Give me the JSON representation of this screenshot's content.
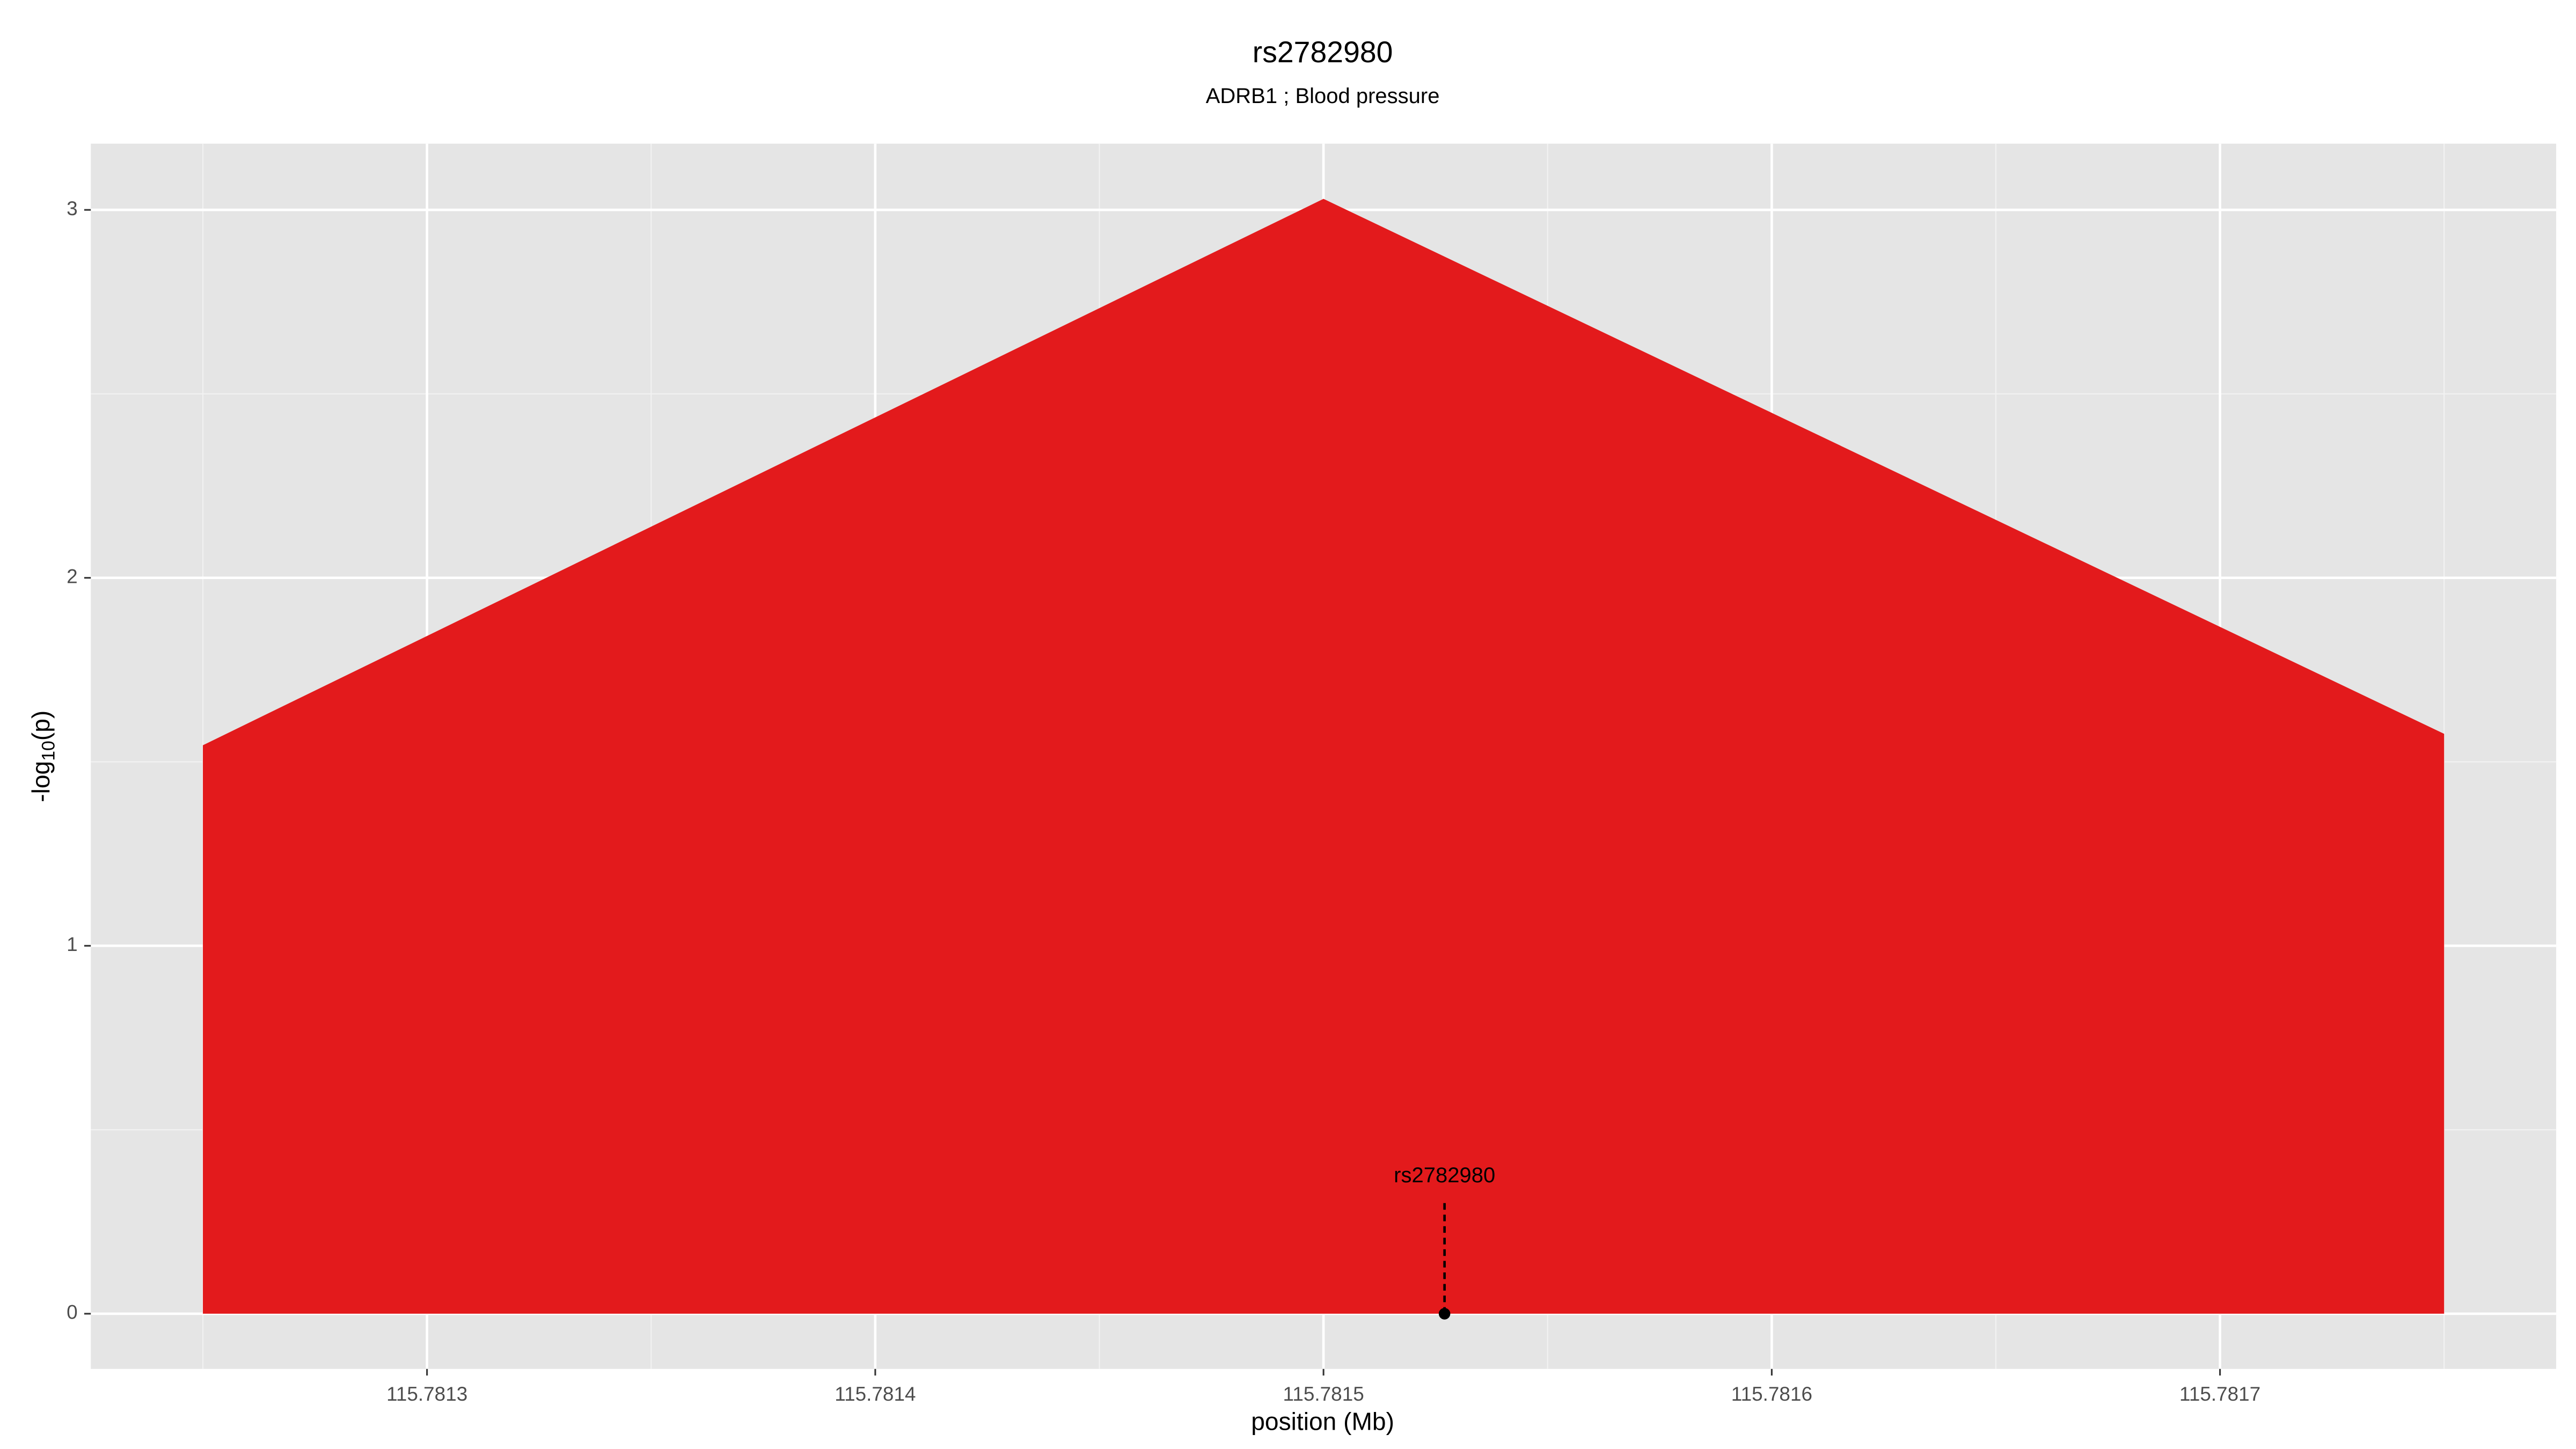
{
  "chart_data": {
    "type": "area",
    "title": "rs2782980",
    "subtitle": "ADRB1 ; Blood pressure",
    "xlabel": "position (Mb)",
    "ylabel": [
      "-log",
      "10",
      "(p)"
    ],
    "x": [
      115.78125,
      115.7815,
      115.78175
    ],
    "values": [
      1.545,
      3.03,
      1.576
    ],
    "color": "#e31a1c",
    "xlim": [
      115.781225,
      115.781775
    ],
    "xticks": [
      115.7813,
      115.7814,
      115.7815,
      115.7816,
      115.7817
    ],
    "ylim": [
      -0.15,
      3.18
    ],
    "yticks": [
      0,
      1,
      2,
      3
    ],
    "grid": true,
    "annotation": {
      "label": "rs2782980",
      "x": 115.781527,
      "y": 0
    }
  }
}
